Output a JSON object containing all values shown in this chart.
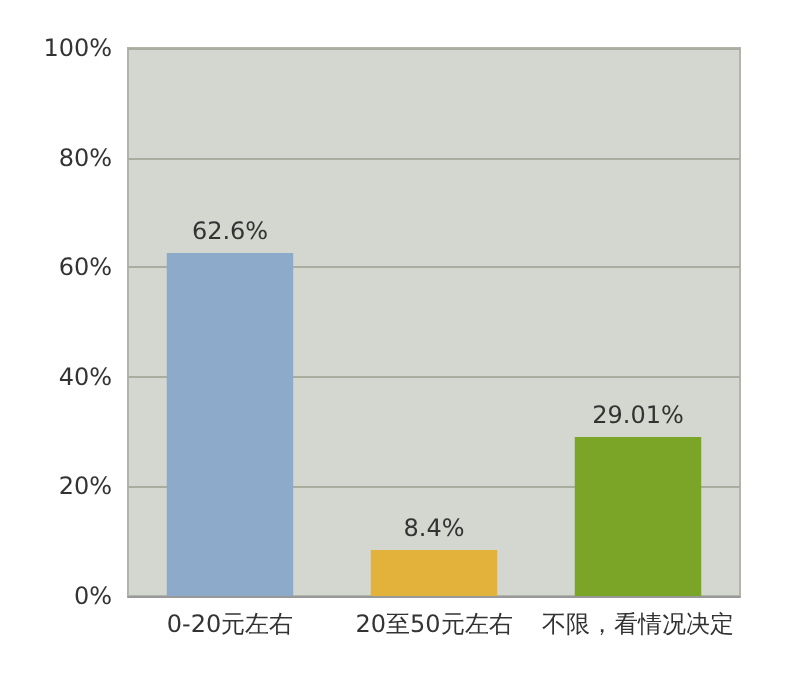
{
  "chart_data": {
    "type": "bar",
    "categories": [
      "0-20元左右",
      "20至50元左右",
      "不限，看情况决定"
    ],
    "values": [
      62.6,
      8.4,
      29.01
    ],
    "colors": [
      "#8eaacb",
      "#e2b23a",
      "#7aa526"
    ],
    "value_labels": [
      "62.6%",
      "8.4%",
      "29.01%"
    ],
    "ylim": [
      0,
      100
    ],
    "yticks": [
      {
        "value": 0,
        "label": "0%"
      },
      {
        "value": 20,
        "label": "20%"
      },
      {
        "value": 40,
        "label": "40%"
      },
      {
        "value": 60,
        "label": "60%"
      },
      {
        "value": 80,
        "label": "80%"
      },
      {
        "value": 100,
        "label": "100%"
      }
    ],
    "grid": "y"
  }
}
